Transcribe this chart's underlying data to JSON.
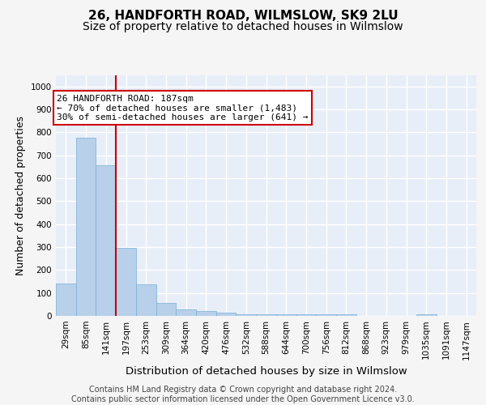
{
  "title": "26, HANDFORTH ROAD, WILMSLOW, SK9 2LU",
  "subtitle": "Size of property relative to detached houses in Wilmslow",
  "xlabel": "Distribution of detached houses by size in Wilmslow",
  "ylabel": "Number of detached properties",
  "categories": [
    "29sqm",
    "85sqm",
    "141sqm",
    "197sqm",
    "253sqm",
    "309sqm",
    "364sqm",
    "420sqm",
    "476sqm",
    "532sqm",
    "588sqm",
    "644sqm",
    "700sqm",
    "756sqm",
    "812sqm",
    "868sqm",
    "923sqm",
    "979sqm",
    "1035sqm",
    "1091sqm",
    "1147sqm"
  ],
  "values": [
    140,
    778,
    655,
    295,
    138,
    57,
    28,
    20,
    15,
    7,
    7,
    7,
    6,
    6,
    6,
    0,
    0,
    0,
    8,
    0,
    0
  ],
  "bar_color": "#b8d0ea",
  "bar_edge_color": "#7aafd4",
  "bar_linewidth": 0.5,
  "vline_color": "#cc0000",
  "vline_x": 2.5,
  "annotation_text": "26 HANDFORTH ROAD: 187sqm\n← 70% of detached houses are smaller (1,483)\n30% of semi-detached houses are larger (641) →",
  "annotation_box_facecolor": "#ffffff",
  "annotation_box_edgecolor": "#cc0000",
  "annotation_fontsize": 8.0,
  "title_fontsize": 11,
  "subtitle_fontsize": 10,
  "xlabel_fontsize": 9.5,
  "ylabel_fontsize": 9,
  "tick_fontsize": 7.5,
  "ylim": [
    0,
    1050
  ],
  "yticks": [
    0,
    100,
    200,
    300,
    400,
    500,
    600,
    700,
    800,
    900,
    1000
  ],
  "footer_text": "Contains HM Land Registry data © Crown copyright and database right 2024.\nContains public sector information licensed under the Open Government Licence v3.0.",
  "footer_fontsize": 7,
  "bg_color": "#e8eef8",
  "grid_color": "#ffffff",
  "fig_facecolor": "#f5f5f5"
}
